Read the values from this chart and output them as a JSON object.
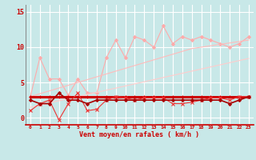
{
  "x": [
    0,
    1,
    2,
    3,
    4,
    5,
    6,
    7,
    8,
    9,
    10,
    11,
    12,
    13,
    14,
    15,
    16,
    17,
    18,
    19,
    20,
    21,
    22,
    23
  ],
  "background_color": "#c8e8e8",
  "grid_color": "#ffffff",
  "xlabel": "Vent moyen/en rafales ( km/h )",
  "xlabel_color": "#cc0000",
  "tick_color": "#cc0000",
  "xlim": [
    -0.5,
    23.5
  ],
  "ylim": [
    -1.0,
    16.0
  ],
  "yticks": [
    0,
    5,
    10,
    15
  ],
  "lines": [
    {
      "name": "light_pink_zigzag",
      "color": "#ffaaaa",
      "linewidth": 0.8,
      "marker": "D",
      "markersize": 2.0,
      "y": [
        3.0,
        8.5,
        5.5,
        5.5,
        3.2,
        5.5,
        3.5,
        3.5,
        8.5,
        11.0,
        8.5,
        11.5,
        11.0,
        10.0,
        13.0,
        10.5,
        11.5,
        11.0,
        11.5,
        11.0,
        10.5,
        10.0,
        10.5,
        11.5
      ]
    },
    {
      "name": "light_pink_trend_upper",
      "color": "#ffbbbb",
      "linewidth": 0.8,
      "marker": null,
      "markersize": 0,
      "y": [
        3.0,
        3.4,
        3.8,
        4.2,
        4.6,
        5.0,
        5.4,
        5.8,
        6.2,
        6.6,
        7.0,
        7.4,
        7.8,
        8.2,
        8.6,
        9.0,
        9.4,
        9.8,
        10.0,
        10.2,
        10.4,
        10.6,
        10.8,
        11.0
      ]
    },
    {
      "name": "light_pink_trend_lower",
      "color": "#ffcccc",
      "linewidth": 0.8,
      "marker": null,
      "markersize": 0,
      "y": [
        1.5,
        1.8,
        2.1,
        2.4,
        2.7,
        3.0,
        3.3,
        3.6,
        3.9,
        4.2,
        4.5,
        4.8,
        5.1,
        5.4,
        5.7,
        6.0,
        6.3,
        6.6,
        6.9,
        7.2,
        7.5,
        7.8,
        8.1,
        8.4
      ]
    },
    {
      "name": "dark_red_thick_flat",
      "color": "#cc0000",
      "linewidth": 2.2,
      "marker": "+",
      "markersize": 3.0,
      "y": [
        3.0,
        3.0,
        3.0,
        3.0,
        3.0,
        3.0,
        3.0,
        3.0,
        3.0,
        3.0,
        3.0,
        3.0,
        3.0,
        3.0,
        3.0,
        3.0,
        3.0,
        3.0,
        3.0,
        3.0,
        3.0,
        3.0,
        3.0,
        3.0
      ]
    },
    {
      "name": "medium_red_jagged",
      "color": "#ee3333",
      "linewidth": 0.8,
      "marker": "x",
      "markersize": 3.0,
      "y": [
        1.0,
        2.0,
        2.5,
        -0.3,
        2.0,
        3.5,
        1.0,
        1.2,
        2.5,
        3.0,
        2.8,
        2.5,
        2.8,
        2.8,
        2.8,
        2.0,
        2.0,
        2.2,
        2.5,
        2.8,
        2.8,
        2.5,
        3.0,
        3.0
      ]
    },
    {
      "name": "dark_red_flat2",
      "color": "#aa0000",
      "linewidth": 1.2,
      "marker": "D",
      "markersize": 2.0,
      "y": [
        2.5,
        2.0,
        2.0,
        3.5,
        2.5,
        2.5,
        2.0,
        2.5,
        2.5,
        2.5,
        2.5,
        2.5,
        2.5,
        2.5,
        2.5,
        2.5,
        2.5,
        2.5,
        2.5,
        2.5,
        2.5,
        2.0,
        2.5,
        3.0
      ]
    }
  ]
}
